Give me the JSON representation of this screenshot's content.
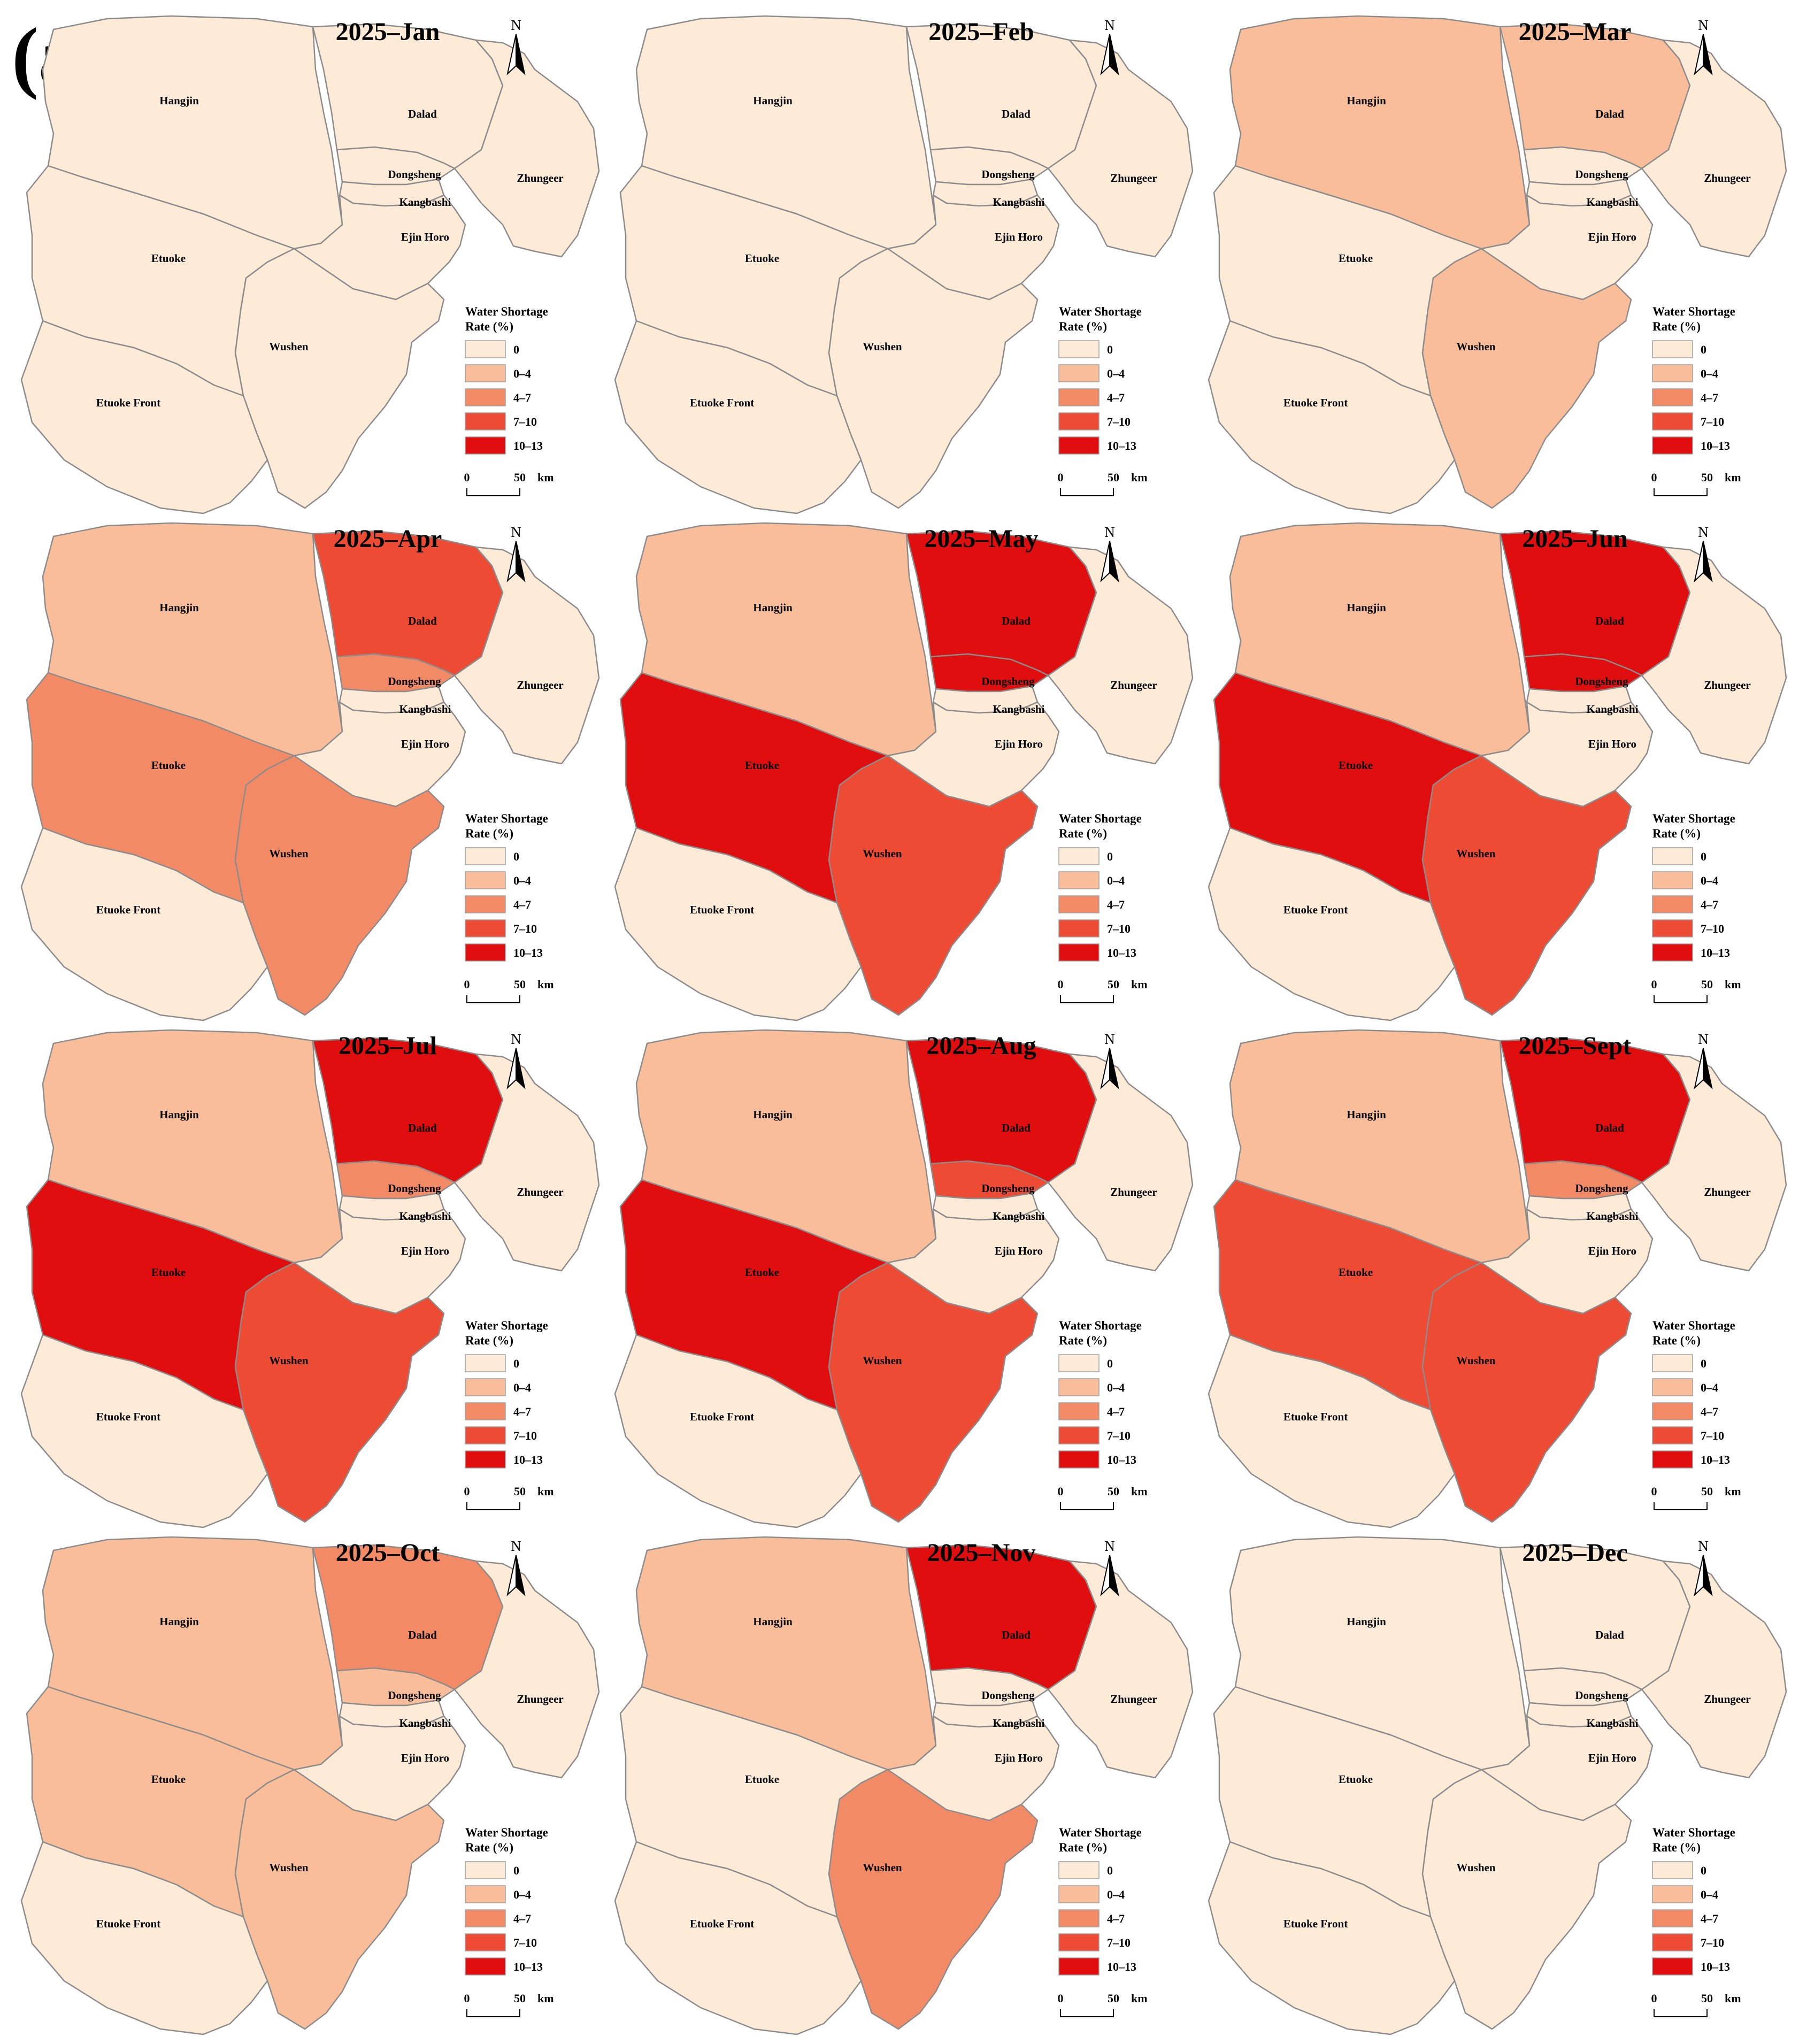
{
  "figure": {
    "panel_label": "(a)",
    "legend_title_line1": "Water Shortage",
    "legend_title_line2": "Rate (%)",
    "legend": [
      {
        "label": "0",
        "color": "#FDEBD8"
      },
      {
        "label": "0–4",
        "color": "#FABD99"
      },
      {
        "label": "4–7",
        "color": "#F38A66"
      },
      {
        "label": "7–10",
        "color": "#EE4B34"
      },
      {
        "label": "10–13",
        "color": "#E00E0E"
      }
    ],
    "scale_bar": {
      "start": "0",
      "end": "50",
      "unit": "km"
    },
    "north_label": "N",
    "boundary_color": "#8c8c8c"
  },
  "regions": [
    "Hangjin",
    "Dalad",
    "Zhungeer",
    "Dongsheng",
    "Kangbashi",
    "Ejin Horo",
    "Etuoke",
    "Wushen",
    "Etuoke Front"
  ],
  "maps": [
    {
      "title": "2025–Jan",
      "classes": {
        "Hangjin": 0,
        "Dalad": 0,
        "Zhungeer": 0,
        "Dongsheng": 0,
        "Kangbashi": 0,
        "Ejin Horo": 0,
        "Etuoke": 0,
        "Wushen": 0,
        "Etuoke Front": 0
      }
    },
    {
      "title": "2025–Feb",
      "classes": {
        "Hangjin": 0,
        "Dalad": 0,
        "Zhungeer": 0,
        "Dongsheng": 0,
        "Kangbashi": 0,
        "Ejin Horo": 0,
        "Etuoke": 0,
        "Wushen": 0,
        "Etuoke Front": 0
      }
    },
    {
      "title": "2025–Mar",
      "classes": {
        "Hangjin": 1,
        "Dalad": 1,
        "Zhungeer": 0,
        "Dongsheng": 0,
        "Kangbashi": 0,
        "Ejin Horo": 0,
        "Etuoke": 0,
        "Wushen": 1,
        "Etuoke Front": 0
      }
    },
    {
      "title": "2025–Apr",
      "classes": {
        "Hangjin": 1,
        "Dalad": 3,
        "Zhungeer": 0,
        "Dongsheng": 2,
        "Kangbashi": 0,
        "Ejin Horo": 0,
        "Etuoke": 2,
        "Wushen": 2,
        "Etuoke Front": 0
      }
    },
    {
      "title": "2025–May",
      "classes": {
        "Hangjin": 1,
        "Dalad": 4,
        "Zhungeer": 0,
        "Dongsheng": 4,
        "Kangbashi": 0,
        "Ejin Horo": 0,
        "Etuoke": 4,
        "Wushen": 3,
        "Etuoke Front": 0
      }
    },
    {
      "title": "2025–Jun",
      "classes": {
        "Hangjin": 1,
        "Dalad": 4,
        "Zhungeer": 0,
        "Dongsheng": 4,
        "Kangbashi": 0,
        "Ejin Horo": 0,
        "Etuoke": 4,
        "Wushen": 3,
        "Etuoke Front": 0
      }
    },
    {
      "title": "2025–Jul",
      "classes": {
        "Hangjin": 1,
        "Dalad": 4,
        "Zhungeer": 0,
        "Dongsheng": 2,
        "Kangbashi": 0,
        "Ejin Horo": 0,
        "Etuoke": 4,
        "Wushen": 3,
        "Etuoke Front": 0
      }
    },
    {
      "title": "2025–Aug",
      "classes": {
        "Hangjin": 1,
        "Dalad": 4,
        "Zhungeer": 0,
        "Dongsheng": 3,
        "Kangbashi": 0,
        "Ejin Horo": 0,
        "Etuoke": 4,
        "Wushen": 3,
        "Etuoke Front": 0
      }
    },
    {
      "title": "2025–Sept",
      "classes": {
        "Hangjin": 1,
        "Dalad": 4,
        "Zhungeer": 0,
        "Dongsheng": 2,
        "Kangbashi": 0,
        "Ejin Horo": 0,
        "Etuoke": 3,
        "Wushen": 3,
        "Etuoke Front": 0
      }
    },
    {
      "title": "2025–Oct",
      "classes": {
        "Hangjin": 1,
        "Dalad": 2,
        "Zhungeer": 0,
        "Dongsheng": 1,
        "Kangbashi": 0,
        "Ejin Horo": 0,
        "Etuoke": 1,
        "Wushen": 1,
        "Etuoke Front": 0
      }
    },
    {
      "title": "2025–Nov",
      "classes": {
        "Hangjin": 1,
        "Dalad": 4,
        "Zhungeer": 0,
        "Dongsheng": 0,
        "Kangbashi": 0,
        "Ejin Horo": 0,
        "Etuoke": 0,
        "Wushen": 2,
        "Etuoke Front": 0
      }
    },
    {
      "title": "2025–Dec",
      "classes": {
        "Hangjin": 0,
        "Dalad": 0,
        "Zhungeer": 0,
        "Dongsheng": 0,
        "Kangbashi": 0,
        "Ejin Horo": 0,
        "Etuoke": 0,
        "Wushen": 0,
        "Etuoke Front": 0
      }
    }
  ]
}
